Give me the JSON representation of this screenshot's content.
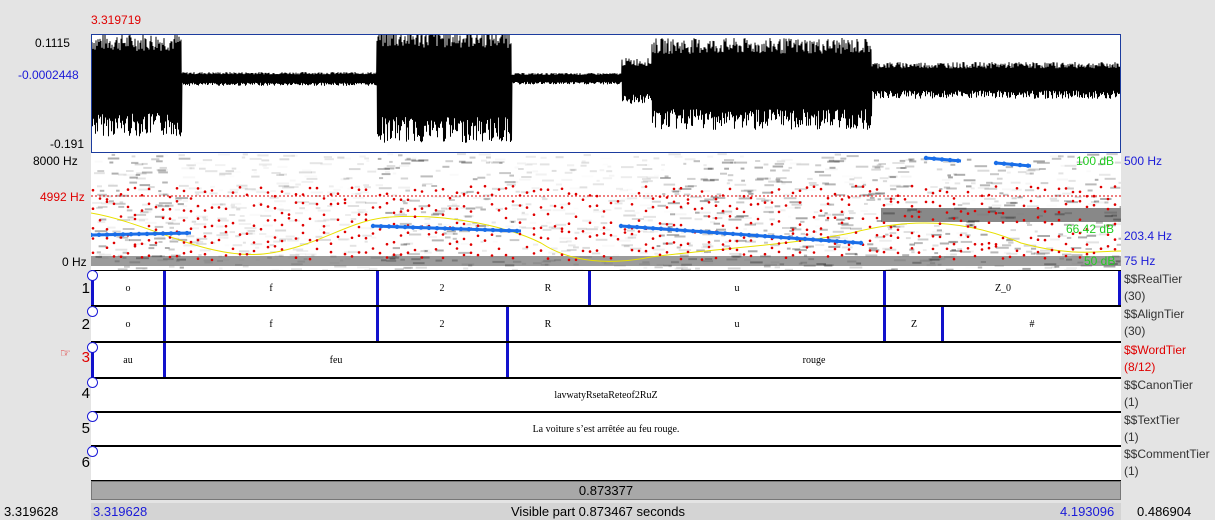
{
  "header": {
    "cursor_time": "3.319719"
  },
  "waveform": {
    "max_label": "0.1115",
    "zero_label": "-0.0002448",
    "min_label": "-0.191"
  },
  "spectrogram": {
    "freq_top": "8000 Hz",
    "freq_cursor": "4992 Hz",
    "freq_bottom": "0 Hz",
    "db_top": "100 dB",
    "db_mid": "66.42 dB",
    "db_bottom": "50 dB",
    "pitch_top": "500 Hz",
    "pitch_mid": "203.4 Hz",
    "pitch_bottom": "75 Hz",
    "colors": {
      "formant": "#e00000",
      "pitch": "#1a6ee8",
      "intensity": "#e8e000"
    }
  },
  "tiers": [
    {
      "number": "1",
      "name": "$$RealTier",
      "count": "(30)",
      "active": false,
      "cells": [
        {
          "text": "o"
        },
        {
          "text": "f"
        },
        {
          "text": "2"
        },
        {
          "text": "R"
        },
        {
          "text": "u"
        },
        {
          "text": "Z_0"
        }
      ]
    },
    {
      "number": "2",
      "name": "$$AlignTier",
      "count": "(30)",
      "active": false,
      "cells": [
        {
          "text": "o"
        },
        {
          "text": "f"
        },
        {
          "text": "2"
        },
        {
          "text": "R"
        },
        {
          "text": "u"
        },
        {
          "text": "Z"
        },
        {
          "text": "#"
        }
      ]
    },
    {
      "number": "3",
      "name": "$$WordTier",
      "count": "(8/12)",
      "active": true,
      "cells": [
        {
          "text": "au"
        },
        {
          "text": "feu"
        },
        {
          "text": "rouge"
        }
      ]
    },
    {
      "number": "4",
      "name": "$$CanonTier",
      "count": "(1)",
      "active": false,
      "cells": [
        {
          "text": "lavwatyRsetaReteof2RuZ"
        }
      ]
    },
    {
      "number": "5",
      "name": "$$TextTier",
      "count": "(1)",
      "active": false,
      "cells": [
        {
          "text": "La voiture s’est arrêtée au feu rouge."
        }
      ]
    },
    {
      "number": "6",
      "name": "$$CommentTier",
      "count": "(1)",
      "active": false,
      "cells": [
        {
          "text": ""
        }
      ]
    }
  ],
  "selection_duration": "0.873377",
  "footer": {
    "left_outer": "3.319628",
    "left_visible": "3.319628",
    "visible_text": "Visible part 0.873467 seconds",
    "right_visible": "4.193096",
    "right_outer": "0.486904"
  },
  "icons": {
    "active_tier_pointer": "hand-pointer-icon"
  }
}
